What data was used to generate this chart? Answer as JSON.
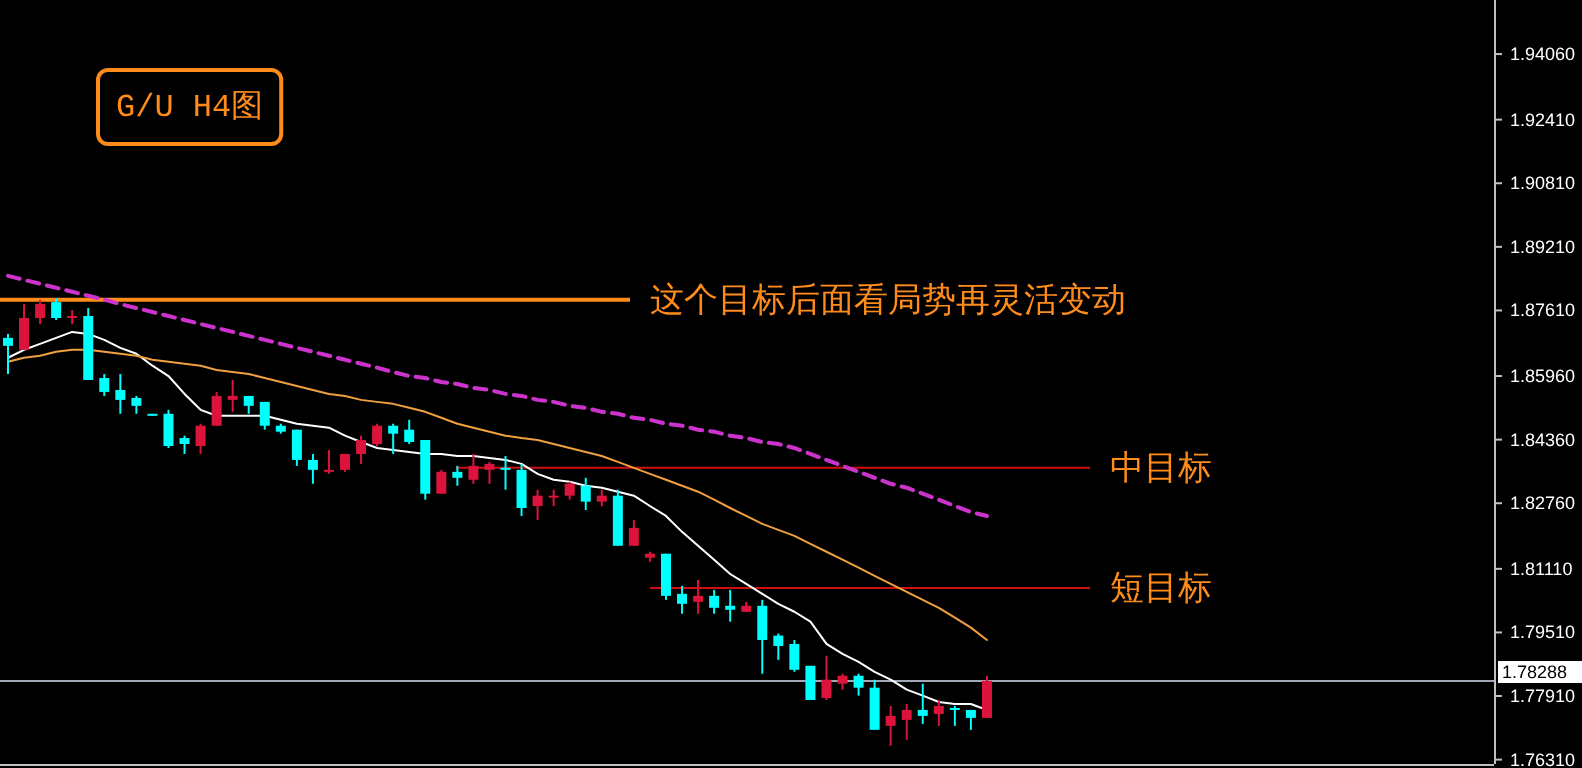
{
  "chart_data": {
    "type": "candlestick",
    "title": "G/U H4图",
    "tick_labels": "y",
    "categories": [
      null,
      null,
      null,
      null,
      null,
      null,
      null,
      null,
      null,
      null,
      null,
      null,
      null,
      null,
      null,
      null,
      null,
      null,
      null,
      null,
      null,
      null,
      null,
      null,
      null,
      null,
      null,
      null,
      null,
      null,
      null,
      null,
      null,
      null,
      null,
      null,
      null,
      null,
      null,
      null,
      null,
      null,
      null,
      null,
      null,
      null,
      null,
      null,
      null,
      null,
      null,
      null,
      null,
      null,
      null,
      null,
      null,
      null,
      null,
      null,
      null,
      null
    ],
    "ohlc": [
      [
        1.8692,
        1.8702,
        1.8601,
        1.8672
      ],
      [
        1.8662,
        1.8777,
        1.8662,
        1.8742
      ],
      [
        1.8742,
        1.8788,
        1.8727,
        1.8777
      ],
      [
        1.8782,
        1.8792,
        1.8737,
        1.8742
      ],
      [
        1.8742,
        1.8762,
        1.8727,
        1.8747
      ],
      [
        1.8747,
        1.8767,
        1.8586,
        1.8586
      ],
      [
        1.8591,
        1.8601,
        1.8546,
        1.8556
      ],
      [
        1.8561,
        1.8601,
        1.8501,
        1.8536
      ],
      [
        1.8541,
        1.8546,
        1.8501,
        1.8521
      ],
      [
        1.8501,
        1.8501,
        1.8496,
        1.8498
      ],
      [
        1.8501,
        1.8511,
        1.8415,
        1.842
      ],
      [
        1.844,
        1.8446,
        1.84,
        1.8425
      ],
      [
        1.842,
        1.8476,
        1.84,
        1.8471
      ],
      [
        1.8471,
        1.8556,
        1.8471,
        1.8546
      ],
      [
        1.8536,
        1.8586,
        1.8506,
        1.8546
      ],
      [
        1.8546,
        1.8546,
        1.8501,
        1.8521
      ],
      [
        1.8531,
        1.8531,
        1.8461,
        1.8471
      ],
      [
        1.8471,
        1.8476,
        1.8451,
        1.8456
      ],
      [
        1.8461,
        1.8461,
        1.837,
        1.8385
      ],
      [
        1.8385,
        1.84,
        1.8325,
        1.836
      ],
      [
        1.8355,
        1.841,
        1.835,
        1.836
      ],
      [
        1.836,
        1.84,
        1.8355,
        1.84
      ],
      [
        1.84,
        1.8446,
        1.8375,
        1.8435
      ],
      [
        1.8425,
        1.8476,
        1.842,
        1.8471
      ],
      [
        1.8471,
        1.8476,
        1.84,
        1.8451
      ],
      [
        1.8461,
        1.8486,
        1.8425,
        1.843
      ],
      [
        1.8435,
        1.8435,
        1.8285,
        1.83
      ],
      [
        1.83,
        1.836,
        1.83,
        1.8355
      ],
      [
        1.8355,
        1.837,
        1.832,
        1.834
      ],
      [
        1.8335,
        1.84,
        1.8325,
        1.837
      ],
      [
        1.836,
        1.838,
        1.8325,
        1.8375
      ],
      [
        1.8365,
        1.8395,
        1.831,
        1.836
      ],
      [
        1.836,
        1.8375,
        1.8244,
        1.8264
      ],
      [
        1.8269,
        1.831,
        1.8234,
        1.8295
      ],
      [
        1.829,
        1.831,
        1.8269,
        1.8295
      ],
      [
        1.8295,
        1.833,
        1.8285,
        1.8325
      ],
      [
        1.832,
        1.834,
        1.8259,
        1.828
      ],
      [
        1.828,
        1.831,
        1.8269,
        1.8295
      ],
      [
        1.8295,
        1.831,
        1.8169,
        1.8169
      ],
      [
        1.8169,
        1.8234,
        1.8169,
        1.8214
      ],
      [
        1.8139,
        1.8154,
        1.8129,
        1.8149
      ],
      [
        1.8149,
        1.8149,
        1.8033,
        1.8043
      ],
      [
        1.8048,
        1.8068,
        1.7998,
        1.8023
      ],
      [
        1.8028,
        1.8083,
        1.7998,
        1.8043
      ],
      [
        1.8043,
        1.8058,
        1.7998,
        1.8013
      ],
      [
        1.8018,
        1.8058,
        1.7978,
        1.8008
      ],
      [
        1.8003,
        1.8028,
        1.8003,
        1.8018
      ],
      [
        1.8018,
        1.8033,
        1.7847,
        1.7932
      ],
      [
        1.7943,
        1.7948,
        1.7882,
        1.7917
      ],
      [
        1.7922,
        1.7932,
        1.7852,
        1.7857
      ],
      [
        1.7867,
        1.7867,
        1.7781,
        1.7781
      ],
      [
        1.7786,
        1.7892,
        1.7781,
        1.7832
      ],
      [
        1.7822,
        1.7847,
        1.7807,
        1.7842
      ],
      [
        1.7842,
        1.7847,
        1.7792,
        1.7812
      ],
      [
        1.7812,
        1.7832,
        1.7706,
        1.7706
      ],
      [
        1.7716,
        1.7766,
        1.7666,
        1.7741
      ],
      [
        1.7731,
        1.7771,
        1.7681,
        1.7756
      ],
      [
        1.7756,
        1.7822,
        1.7721,
        1.7741
      ],
      [
        1.7746,
        1.7781,
        1.7716,
        1.7766
      ],
      [
        1.7761,
        1.7766,
        1.7716,
        1.7756
      ],
      [
        1.7756,
        1.7756,
        1.7706,
        1.7736
      ],
      [
        1.7736,
        1.7842,
        1.7736,
        1.7829
      ]
    ],
    "colors": [
      "#00ffff",
      "#dc143c",
      "#dc143c",
      "#00ffff",
      "#dc143c",
      "#00ffff",
      "#00ffff",
      "#00ffff",
      "#00ffff",
      "#00ffff",
      "#00ffff",
      "#00ffff",
      "#dc143c",
      "#dc143c",
      "#dc143c",
      "#00ffff",
      "#00ffff",
      "#00ffff",
      "#00ffff",
      "#00ffff",
      "#dc143c",
      "#dc143c",
      "#dc143c",
      "#dc143c",
      "#00ffff",
      "#00ffff",
      "#00ffff",
      "#dc143c",
      "#00ffff",
      "#dc143c",
      "#dc143c",
      "#00ffff",
      "#00ffff",
      "#dc143c",
      "#dc143c",
      "#dc143c",
      "#00ffff",
      "#dc143c",
      "#00ffff",
      "#dc143c",
      "#dc143c",
      "#00ffff",
      "#00ffff",
      "#dc143c",
      "#00ffff",
      "#00ffff",
      "#dc143c",
      "#00ffff",
      "#00ffff",
      "#00ffff",
      "#00ffff",
      "#dc143c",
      "#dc143c",
      "#00ffff",
      "#00ffff",
      "#dc143c",
      "#dc143c",
      "#00ffff",
      "#dc143c",
      "#00ffff",
      "#00ffff",
      "#dc143c"
    ],
    "series": [
      {
        "type": "line",
        "color": "#ffffff",
        "line_style": "solid",
        "values": [
          1.8642,
          1.8662,
          1.8677,
          1.8692,
          1.8707,
          1.8702,
          1.8687,
          1.8667,
          1.8652,
          1.8622,
          1.8596,
          1.8551,
          1.8511,
          1.8496,
          1.8496,
          1.8496,
          1.8496,
          1.8486,
          1.8476,
          1.8471,
          1.8466,
          1.8446,
          1.843,
          1.8415,
          1.841,
          1.8405,
          1.84,
          1.84,
          1.8395,
          1.8395,
          1.839,
          1.8385,
          1.8375,
          1.835,
          1.8335,
          1.833,
          1.832,
          1.8315,
          1.8305,
          1.8295,
          1.8269,
          1.8244,
          1.8204,
          1.8169,
          1.8134,
          1.8098,
          1.8073,
          1.8048,
          1.8023,
          1.8003,
          1.7978,
          1.7922,
          1.7897,
          1.7877,
          1.7852,
          1.7832,
          1.7807,
          1.7792,
          1.7776,
          1.7771,
          1.7771,
          1.7756
        ]
      },
      {
        "type": "line",
        "color": "#f0a040",
        "line_style": "solid",
        "values": [
          1.8632,
          1.8642,
          1.8647,
          1.8657,
          1.8662,
          1.8662,
          1.8657,
          1.8652,
          1.8647,
          1.8637,
          1.8632,
          1.8627,
          1.8622,
          1.8611,
          1.8606,
          1.8601,
          1.8591,
          1.8581,
          1.8571,
          1.8561,
          1.8551,
          1.8546,
          1.8536,
          1.8531,
          1.8526,
          1.8516,
          1.8506,
          1.8491,
          1.8476,
          1.8466,
          1.8456,
          1.8446,
          1.844,
          1.8435,
          1.8425,
          1.8415,
          1.8405,
          1.8395,
          1.838,
          1.8365,
          1.835,
          1.8335,
          1.832,
          1.8305,
          1.8285,
          1.8264,
          1.8244,
          1.8224,
          1.8209,
          1.8194,
          1.8174,
          1.8154,
          1.8134,
          1.8114,
          1.8093,
          1.8073,
          1.8053,
          1.8033,
          1.8013,
          1.7988,
          1.7963,
          1.7932
        ]
      },
      {
        "type": "line",
        "color": "#cc33cc",
        "line_style": "dashed",
        "values": [
          1.8848,
          1.8838,
          1.8828,
          1.8818,
          1.8808,
          1.8798,
          1.8788,
          1.8777,
          1.8767,
          1.8757,
          1.8747,
          1.8737,
          1.8727,
          1.8717,
          1.8707,
          1.8697,
          1.8687,
          1.8677,
          1.8667,
          1.8657,
          1.8647,
          1.8637,
          1.8627,
          1.8617,
          1.8606,
          1.8596,
          1.8591,
          1.8581,
          1.8576,
          1.8566,
          1.8561,
          1.8551,
          1.8546,
          1.8536,
          1.8531,
          1.8521,
          1.8516,
          1.8506,
          1.8501,
          1.8491,
          1.8486,
          1.8476,
          1.8471,
          1.8461,
          1.8456,
          1.8446,
          1.844,
          1.843,
          1.8425,
          1.8415,
          1.84,
          1.8385,
          1.837,
          1.8355,
          1.834,
          1.8325,
          1.8315,
          1.83,
          1.8285,
          1.8269,
          1.8254,
          1.8244
        ]
      }
    ],
    "ylim": [
      1.762,
      1.9542
    ],
    "yticks": [
      {
        "value": 1.9406,
        "label": "1.94060"
      },
      {
        "value": 1.9241,
        "label": "1.92410"
      },
      {
        "value": 1.9081,
        "label": "1.90810"
      },
      {
        "value": 1.8921,
        "label": "1.89210"
      },
      {
        "value": 1.8761,
        "label": "1.87610"
      },
      {
        "value": 1.8596,
        "label": "1.85960"
      },
      {
        "value": 1.8436,
        "label": "1.84360"
      },
      {
        "value": 1.8276,
        "label": "1.82760"
      },
      {
        "value": 1.8111,
        "label": "1.81110"
      },
      {
        "value": 1.7951,
        "label": "1.79510"
      },
      {
        "value": 1.7791,
        "label": "1.77910"
      },
      {
        "value": 1.7631,
        "label": "1.76310"
      }
    ],
    "ref_lines": [
      {
        "axis": "y",
        "value": 1.8788,
        "label": "这个目标后面看局势再灵活变动",
        "color": "#ff8c1a"
      },
      {
        "axis": "y",
        "value": 1.8365,
        "label": "中目标",
        "color": "#d01010"
      },
      {
        "axis": "y",
        "value": 1.8063,
        "label": "短目标",
        "color": "#d01010"
      },
      {
        "axis": "y",
        "value": 1.78288,
        "label": "1.78288",
        "color": "#a0a8b8"
      }
    ]
  }
}
